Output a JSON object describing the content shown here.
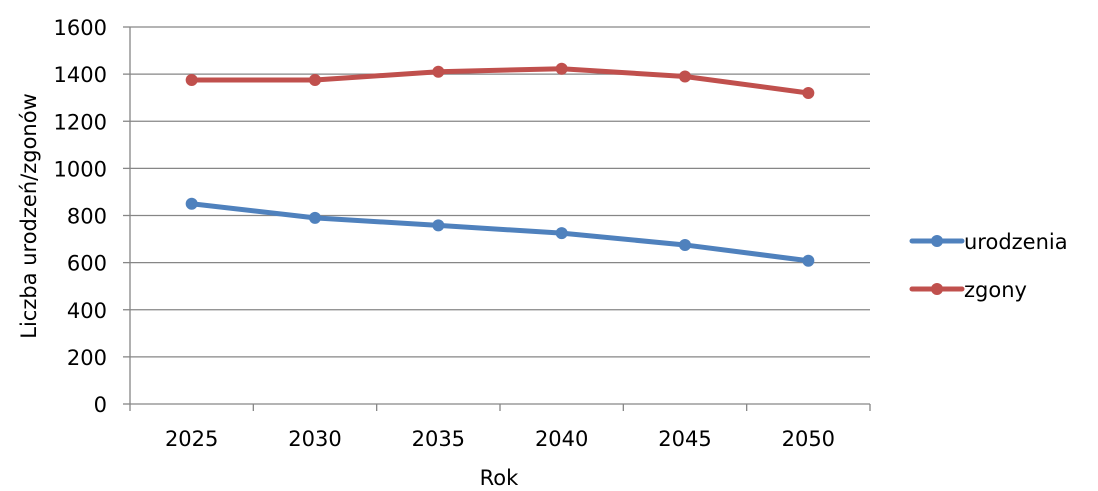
{
  "chart_data": {
    "type": "line",
    "categories": [
      "2025",
      "2030",
      "2035",
      "2040",
      "2045",
      "2050"
    ],
    "series": [
      {
        "name": "urodzenia",
        "color": "#4F81BD",
        "values": [
          850,
          790,
          758,
          725,
          675,
          608
        ]
      },
      {
        "name": "zgony",
        "color": "#C0504D",
        "values": [
          1375,
          1375,
          1410,
          1423,
          1390,
          1320
        ]
      }
    ],
    "xlabel": "Rok",
    "ylabel": "Liczba urodzeń/zgonów",
    "ylim": [
      0,
      1600
    ],
    "ytick_step": 200,
    "grid": "horizontal",
    "legend_position": "right",
    "gridline_color": "#868686",
    "axis_color": "#868686"
  }
}
